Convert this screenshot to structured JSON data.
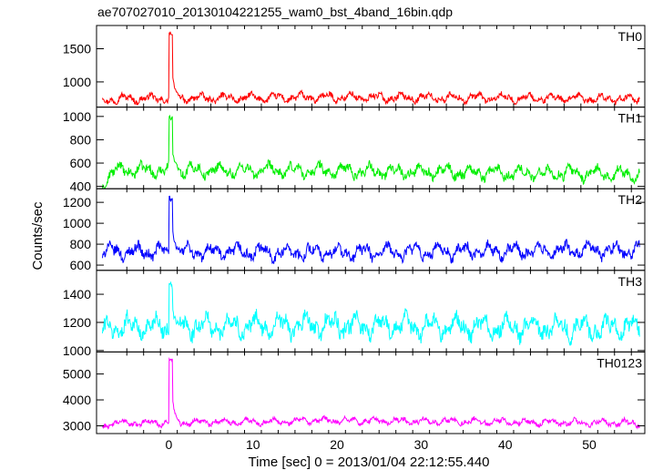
{
  "chart_data": {
    "type": "line",
    "title": "ae707027010_20130104221255_wam0_bst_4band_16bin.qdp",
    "xlabel": "Time [sec] 0 = 2013/01/04 22:12:55.440",
    "ylabel": "Counts/sec",
    "xlim": [
      -8.6,
      56.6
    ],
    "x_ticks": [
      0,
      10,
      20,
      30,
      40,
      50
    ],
    "x_tick_labels": [
      "0",
      "10",
      "20",
      "30",
      "40",
      "50"
    ],
    "grid": false,
    "panels": [
      {
        "name": "TH0",
        "color": "#ff0000",
        "ylim": [
          620,
          1850
        ],
        "y_ticks": [
          1000,
          1500
        ],
        "y_tick_labels": [
          "1000",
          "1500"
        ],
        "baseline": 760,
        "noise": 45,
        "peak": 1760,
        "trend": [
          [
            -8,
            720
          ],
          [
            -7,
            745
          ],
          [
            20,
            770
          ],
          [
            56,
            745
          ]
        ]
      },
      {
        "name": "TH1",
        "color": "#00ee00",
        "ylim": [
          380,
          1080
        ],
        "y_ticks": [
          400,
          600,
          800,
          1000
        ],
        "y_tick_labels": [
          "400",
          "600",
          "800",
          "1000"
        ],
        "baseline": 525,
        "noise": 40,
        "peak": 1010,
        "trend": [
          [
            -8,
            400
          ],
          [
            -7,
            500
          ],
          [
            -6,
            540
          ],
          [
            20,
            535
          ],
          [
            56,
            505
          ]
        ]
      },
      {
        "name": "TH2",
        "color": "#0000ff",
        "ylim": [
          550,
          1330
        ],
        "y_ticks": [
          600,
          800,
          1000,
          1200
        ],
        "y_tick_labels": [
          "600",
          "800",
          "1000",
          "1200"
        ],
        "baseline": 720,
        "noise": 50,
        "peak": 1270,
        "trend": [
          [
            -8,
            730
          ],
          [
            20,
            720
          ],
          [
            56,
            745
          ]
        ]
      },
      {
        "name": "TH3",
        "color": "#00ffff",
        "ylim": [
          990,
          1570
        ],
        "y_ticks": [
          1000,
          1200,
          1400
        ],
        "y_tick_labels": [
          "1000",
          "1200",
          "1400"
        ],
        "baseline": 1170,
        "noise": 55,
        "peak": 1490,
        "trend": [
          [
            -8,
            1110
          ],
          [
            -7,
            1170
          ],
          [
            20,
            1180
          ],
          [
            56,
            1160
          ]
        ]
      },
      {
        "name": "TH0123",
        "color": "#ff00ff",
        "ylim": [
          2700,
          5850
        ],
        "y_ticks": [
          3000,
          4000,
          5000
        ],
        "y_tick_labels": [
          "3000",
          "4000",
          "5000"
        ],
        "baseline": 3150,
        "noise": 90,
        "peak": 5600,
        "trend": [
          [
            -8,
            2900
          ],
          [
            -7,
            3100
          ],
          [
            20,
            3200
          ],
          [
            56,
            3100
          ]
        ]
      }
    ]
  }
}
